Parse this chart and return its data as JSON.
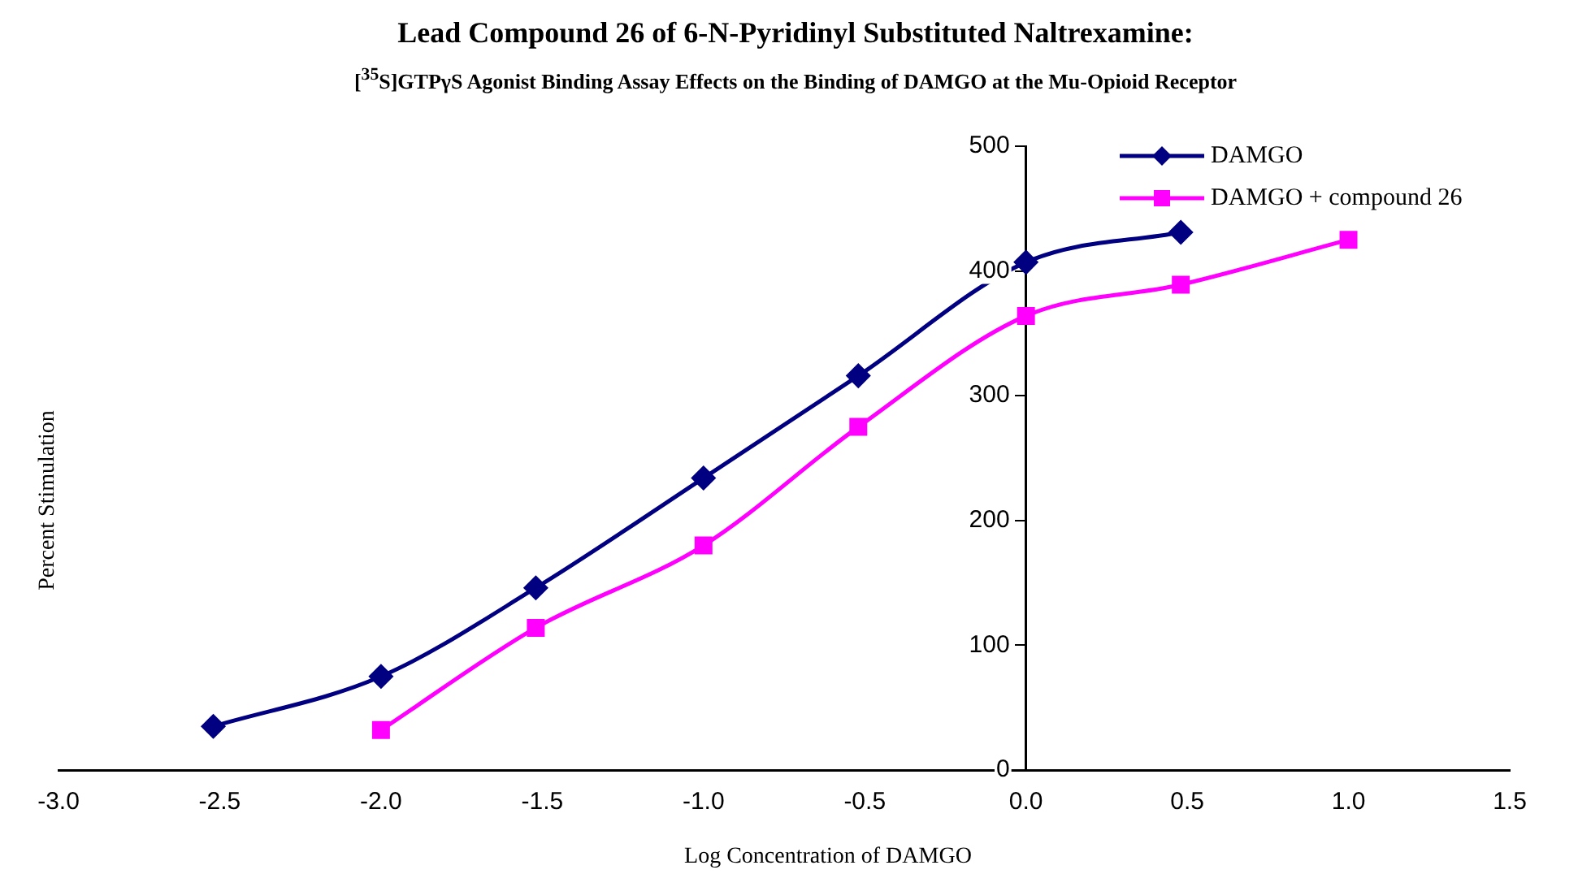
{
  "chart_data": {
    "type": "line",
    "title": "Lead Compound 26 of 6-N-Pyridinyl Substituted Naltrexamine:",
    "subtitle": "[$^{35}$S]GTPγS Agonist Binding Assay Effects on the Binding of  DAMGO at the Mu-Opioid Receptor",
    "xlabel": "Log Concentration of DAMGO",
    "ylabel": "Percent Stimulation",
    "xlim": [
      -3,
      1.5
    ],
    "xticks": [
      {
        "value": -3,
        "label": "-3.0"
      },
      {
        "value": -2.5,
        "label": "-2.5"
      },
      {
        "value": -2,
        "label": "-2.0"
      },
      {
        "value": -1.5,
        "label": "-1.5"
      },
      {
        "value": -1,
        "label": "-1.0"
      },
      {
        "value": -0.5,
        "label": "-0.5"
      },
      {
        "value": 0,
        "label": "0.0"
      },
      {
        "value": 0.5,
        "label": "0.5"
      },
      {
        "value": 1,
        "label": "1.0"
      },
      {
        "value": 1.5,
        "label": "1.5"
      }
    ],
    "ylim": [
      0,
      500
    ],
    "yticks": [
      0,
      100,
      200,
      300,
      400,
      500
    ],
    "grid": false,
    "legend": "top right",
    "series": [
      {
        "name": "DAMGO",
        "color": "#000080",
        "marker": "diamond",
        "x": [
          -2.52,
          -2,
          -1.52,
          -1,
          -0.52,
          0,
          0.48
        ],
        "values": [
          35,
          75,
          146,
          234,
          316,
          407,
          431
        ]
      },
      {
        "name": "DAMGO + compound 26",
        "color": "#ff00ff",
        "marker": "square",
        "x": [
          -2,
          -1.52,
          -1,
          -0.52,
          0,
          0.48,
          1
        ],
        "values": [
          32,
          114,
          180,
          275,
          364,
          389,
          425
        ]
      }
    ]
  }
}
